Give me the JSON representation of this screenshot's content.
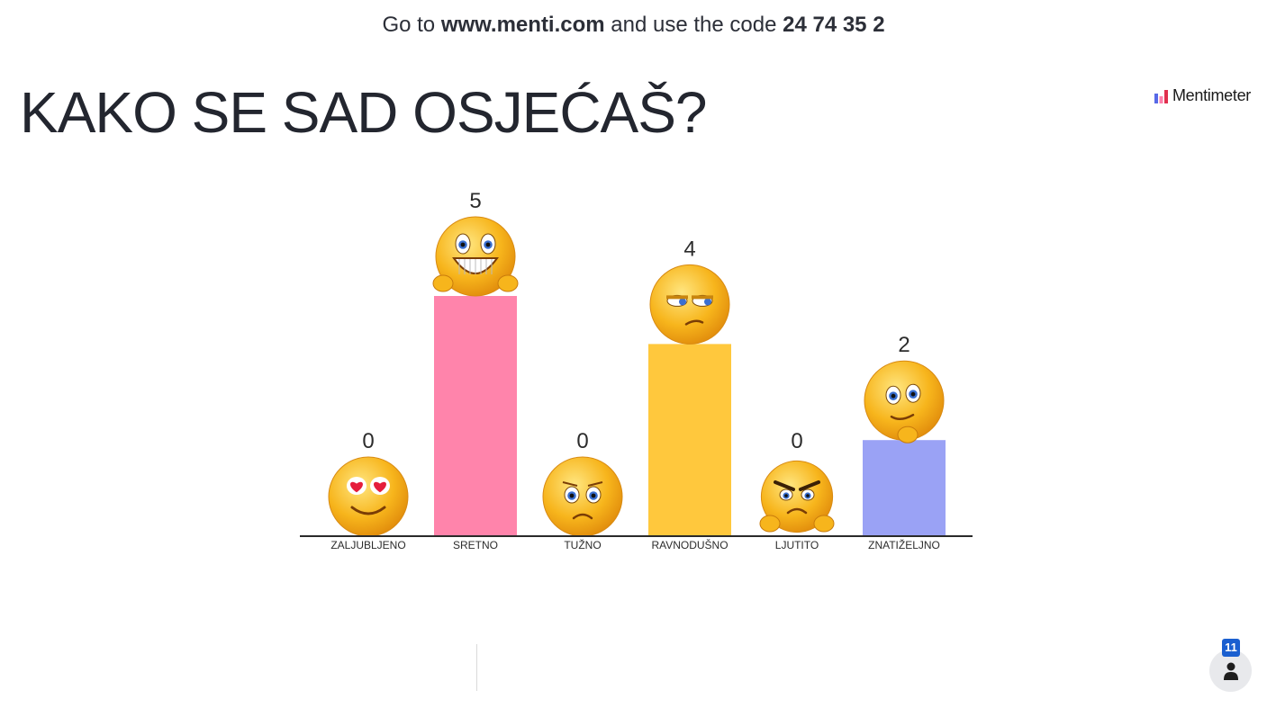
{
  "join": {
    "prefix": "Go to ",
    "url": "www.menti.com",
    "middle": " and use the code ",
    "code": "24 74 35 2"
  },
  "question": {
    "title": "KAKO SE SAD OSJEĆAŠ?"
  },
  "brand": {
    "name": "Mentimeter"
  },
  "participants": {
    "count": "11",
    "icon": "person-icon"
  },
  "chart_data": {
    "type": "bar",
    "categories": [
      "ZALJUBLJENO",
      "SRETNO",
      "TUŽNO",
      "RAVNODUŠNO",
      "LJUTITO",
      "ZNATIŽELJNO"
    ],
    "values": [
      0,
      5,
      0,
      4,
      0,
      2
    ],
    "value_labels": [
      "0",
      "5",
      "0",
      "4",
      "0",
      "2"
    ],
    "colors": [
      "#9aa2f5",
      "#ff84ab",
      "#ffc83d",
      "#ffc83d",
      "#9aa2f5",
      "#9aa2f5"
    ],
    "emojis": [
      "heart-eyes-emoji-icon",
      "grinning-thumbs-up-emoji-icon",
      "sad-emoji-icon",
      "unamused-emoji-icon",
      "angry-thumbs-down-emoji-icon",
      "thinking-emoji-icon"
    ],
    "ylim": [
      0,
      5
    ],
    "grid": false,
    "title": "",
    "xlabel": "",
    "ylabel": ""
  },
  "theme": {
    "text": "#23262f",
    "axis": "#2a2a2a",
    "emoji_yellow": "#f7b51c",
    "brand_blue": "#1a5fd0"
  }
}
